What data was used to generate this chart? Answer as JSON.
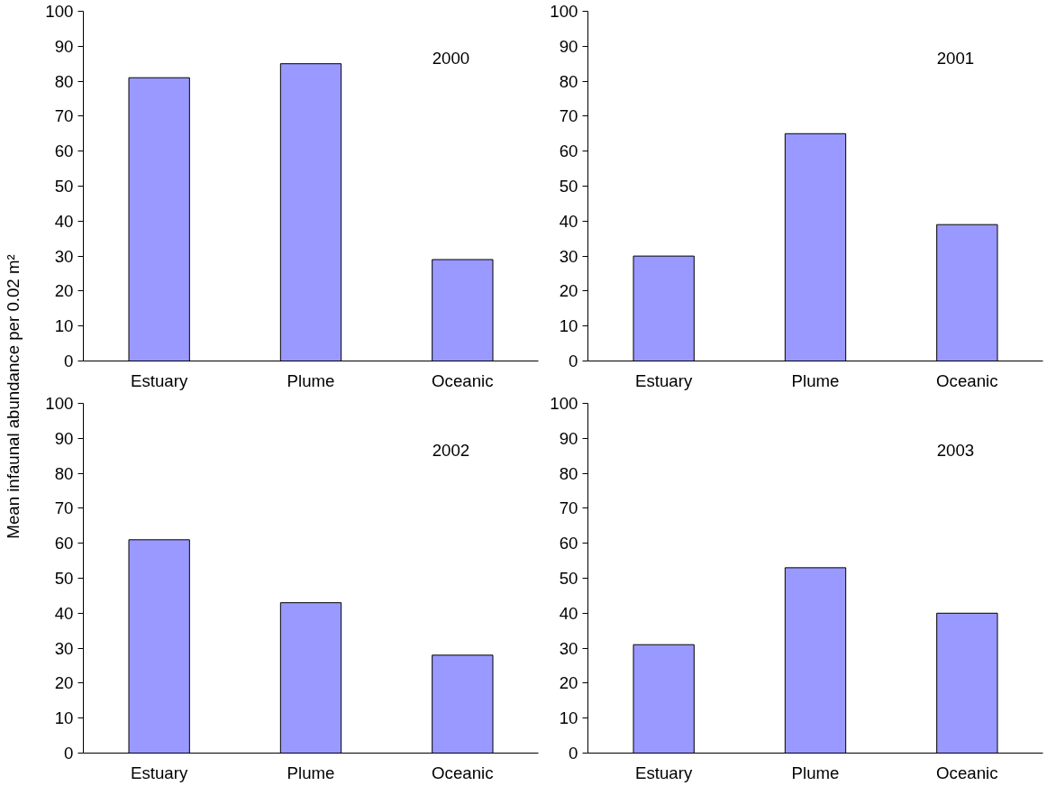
{
  "chart_data": [
    {
      "type": "bar",
      "title": "2000",
      "ylabel": "Mean infaunal abundance per 0.02 m²",
      "categories": [
        "Estuary",
        "Plume",
        "Oceanic"
      ],
      "values": [
        81,
        85,
        29
      ],
      "color": "#9999ff",
      "ylim": [
        0,
        100
      ],
      "yticks": [
        0,
        10,
        20,
        30,
        40,
        50,
        60,
        70,
        80,
        90,
        100
      ],
      "grid": false
    },
    {
      "type": "bar",
      "title": "2001",
      "categories": [
        "Estuary",
        "Plume",
        "Oceanic"
      ],
      "values": [
        30,
        65,
        39
      ],
      "color": "#9999ff",
      "ylim": [
        0,
        100
      ],
      "yticks": [
        0,
        10,
        20,
        30,
        40,
        50,
        60,
        70,
        80,
        90,
        100
      ],
      "grid": false
    },
    {
      "type": "bar",
      "title": "2002",
      "categories": [
        "Estuary",
        "Plume",
        "Oceanic"
      ],
      "values": [
        61,
        43,
        28
      ],
      "color": "#9999ff",
      "ylim": [
        0,
        100
      ],
      "yticks": [
        0,
        10,
        20,
        30,
        40,
        50,
        60,
        70,
        80,
        90,
        100
      ],
      "grid": false
    },
    {
      "type": "bar",
      "title": "2003",
      "categories": [
        "Estuary",
        "Plume",
        "Oceanic"
      ],
      "values": [
        31,
        53,
        40
      ],
      "color": "#9999ff",
      "ylim": [
        0,
        100
      ],
      "yticks": [
        0,
        10,
        20,
        30,
        40,
        50,
        60,
        70,
        80,
        90,
        100
      ],
      "grid": false
    }
  ]
}
